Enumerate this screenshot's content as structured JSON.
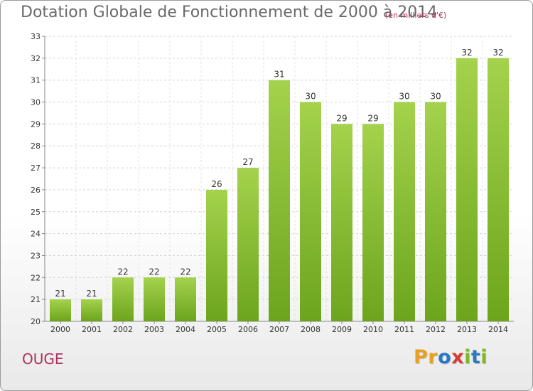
{
  "header": {
    "title": "Dotation Globale de Fonctionnement de 2000 à 2014",
    "unit": "(en milliers d'€)"
  },
  "footer": {
    "commune": "OUGE",
    "logo": [
      "P",
      "r",
      "o",
      "x",
      "i",
      "t",
      "i"
    ]
  },
  "colors": {
    "bar_light": "#a4d24c",
    "bar_dark": "#6ca51c",
    "title": "#6a6a6a",
    "accent": "#b03060",
    "logo": [
      "#e8a020",
      "#e8a020",
      "#2a78c4",
      "#d83a30",
      "#7cb828",
      "#2a78c4",
      "#7cb828"
    ]
  },
  "chart_data": {
    "type": "bar",
    "title": "Dotation Globale de Fonctionnement de 2000 à 2014",
    "subtitle": "(en milliers d'€)",
    "xlabel": "",
    "ylabel": "",
    "categories": [
      "2000",
      "2001",
      "2002",
      "2003",
      "2004",
      "2005",
      "2006",
      "2007",
      "2008",
      "2009",
      "2010",
      "2011",
      "2012",
      "2013",
      "2014"
    ],
    "values": [
      21,
      21,
      22,
      22,
      22,
      26,
      27,
      31,
      30,
      29,
      29,
      30,
      30,
      32,
      32
    ],
    "ylim": [
      20,
      33
    ],
    "yticks": [
      20,
      21,
      22,
      23,
      24,
      25,
      26,
      27,
      28,
      29,
      30,
      31,
      32,
      33
    ],
    "grid": true,
    "legend": "none"
  }
}
